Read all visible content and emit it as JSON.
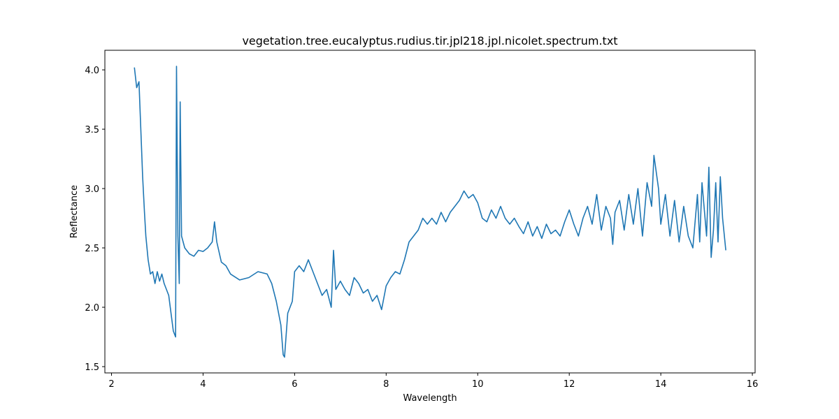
{
  "chart_data": {
    "type": "line",
    "title": "vegetation.tree.eucalyptus.rudius.tir.jpl218.jpl.nicolet.spectrum.txt",
    "x_label": "Wavelength",
    "y_label": "Reflectance",
    "xlim": [
      1.855,
      16.06
    ],
    "ylim": [
      1.447,
      4.165
    ],
    "xticks": [
      2,
      4,
      6,
      8,
      10,
      12,
      14,
      16
    ],
    "yticks": [
      1.5,
      {
        "value": 2,
        "label": "2.0"
      },
      2.5,
      {
        "value": 3,
        "label": "3.0"
      },
      3.5,
      {
        "value": 4,
        "label": "4.0"
      }
    ],
    "grid": false,
    "x": [
      2.5,
      2.55,
      2.6,
      2.62,
      2.65,
      2.68,
      2.72,
      2.75,
      2.8,
      2.85,
      2.9,
      2.95,
      3.0,
      3.05,
      3.1,
      3.15,
      3.2,
      3.25,
      3.3,
      3.35,
      3.4,
      3.42,
      3.45,
      3.48,
      3.5,
      3.53,
      3.6,
      3.7,
      3.8,
      3.9,
      4.0,
      4.1,
      4.2,
      4.25,
      4.3,
      4.4,
      4.5,
      4.6,
      4.8,
      5.0,
      5.2,
      5.4,
      5.5,
      5.6,
      5.7,
      5.75,
      5.78,
      5.85,
      5.95,
      6.0,
      6.1,
      6.2,
      6.3,
      6.4,
      6.5,
      6.6,
      6.7,
      6.8,
      6.85,
      6.9,
      7.0,
      7.1,
      7.2,
      7.3,
      7.4,
      7.5,
      7.6,
      7.7,
      7.8,
      7.9,
      8.0,
      8.1,
      8.2,
      8.3,
      8.4,
      8.5,
      8.6,
      8.7,
      8.8,
      8.9,
      9.0,
      9.1,
      9.2,
      9.3,
      9.4,
      9.5,
      9.6,
      9.7,
      9.8,
      9.9,
      10.0,
      10.1,
      10.2,
      10.3,
      10.4,
      10.5,
      10.6,
      10.7,
      10.8,
      10.9,
      11.0,
      11.1,
      11.2,
      11.3,
      11.4,
      11.5,
      11.6,
      11.7,
      11.8,
      11.9,
      12.0,
      12.1,
      12.2,
      12.3,
      12.4,
      12.5,
      12.6,
      12.7,
      12.8,
      12.9,
      12.95,
      13.0,
      13.1,
      13.2,
      13.3,
      13.4,
      13.5,
      13.6,
      13.7,
      13.8,
      13.85,
      13.95,
      14.0,
      14.1,
      14.2,
      14.3,
      14.4,
      14.5,
      14.6,
      14.7,
      14.8,
      14.85,
      14.9,
      15.0,
      15.05,
      15.1,
      15.15,
      15.2,
      15.25,
      15.3,
      15.35,
      15.42
    ],
    "series": [
      {
        "color": "#1f77b4",
        "values": [
          4.02,
          3.85,
          3.9,
          3.7,
          3.4,
          3.1,
          2.8,
          2.6,
          2.4,
          2.28,
          2.3,
          2.2,
          2.3,
          2.22,
          2.28,
          2.2,
          2.15,
          2.1,
          1.95,
          1.8,
          1.75,
          4.03,
          2.6,
          2.2,
          3.73,
          2.6,
          2.5,
          2.45,
          2.43,
          2.48,
          2.47,
          2.5,
          2.55,
          2.72,
          2.55,
          2.38,
          2.35,
          2.28,
          2.23,
          2.25,
          2.3,
          2.28,
          2.2,
          2.05,
          1.85,
          1.6,
          1.58,
          1.95,
          2.05,
          2.3,
          2.35,
          2.3,
          2.4,
          2.3,
          2.2,
          2.1,
          2.15,
          2.0,
          2.48,
          2.15,
          2.22,
          2.15,
          2.1,
          2.25,
          2.2,
          2.12,
          2.15,
          2.05,
          2.1,
          1.98,
          2.18,
          2.25,
          2.3,
          2.28,
          2.4,
          2.55,
          2.6,
          2.65,
          2.75,
          2.7,
          2.75,
          2.7,
          2.8,
          2.72,
          2.8,
          2.85,
          2.9,
          2.98,
          2.92,
          2.95,
          2.88,
          2.75,
          2.72,
          2.82,
          2.75,
          2.85,
          2.75,
          2.7,
          2.75,
          2.68,
          2.62,
          2.72,
          2.6,
          2.68,
          2.58,
          2.7,
          2.62,
          2.65,
          2.6,
          2.72,
          2.82,
          2.7,
          2.6,
          2.75,
          2.85,
          2.7,
          2.95,
          2.65,
          2.85,
          2.75,
          2.53,
          2.8,
          2.9,
          2.65,
          2.95,
          2.7,
          3.0,
          2.6,
          3.05,
          2.85,
          3.28,
          3.0,
          2.7,
          2.95,
          2.6,
          2.9,
          2.55,
          2.85,
          2.6,
          2.5,
          2.95,
          2.55,
          3.05,
          2.6,
          3.18,
          2.42,
          2.65,
          3.05,
          2.55,
          3.1,
          2.75,
          2.48
        ]
      }
    ]
  }
}
